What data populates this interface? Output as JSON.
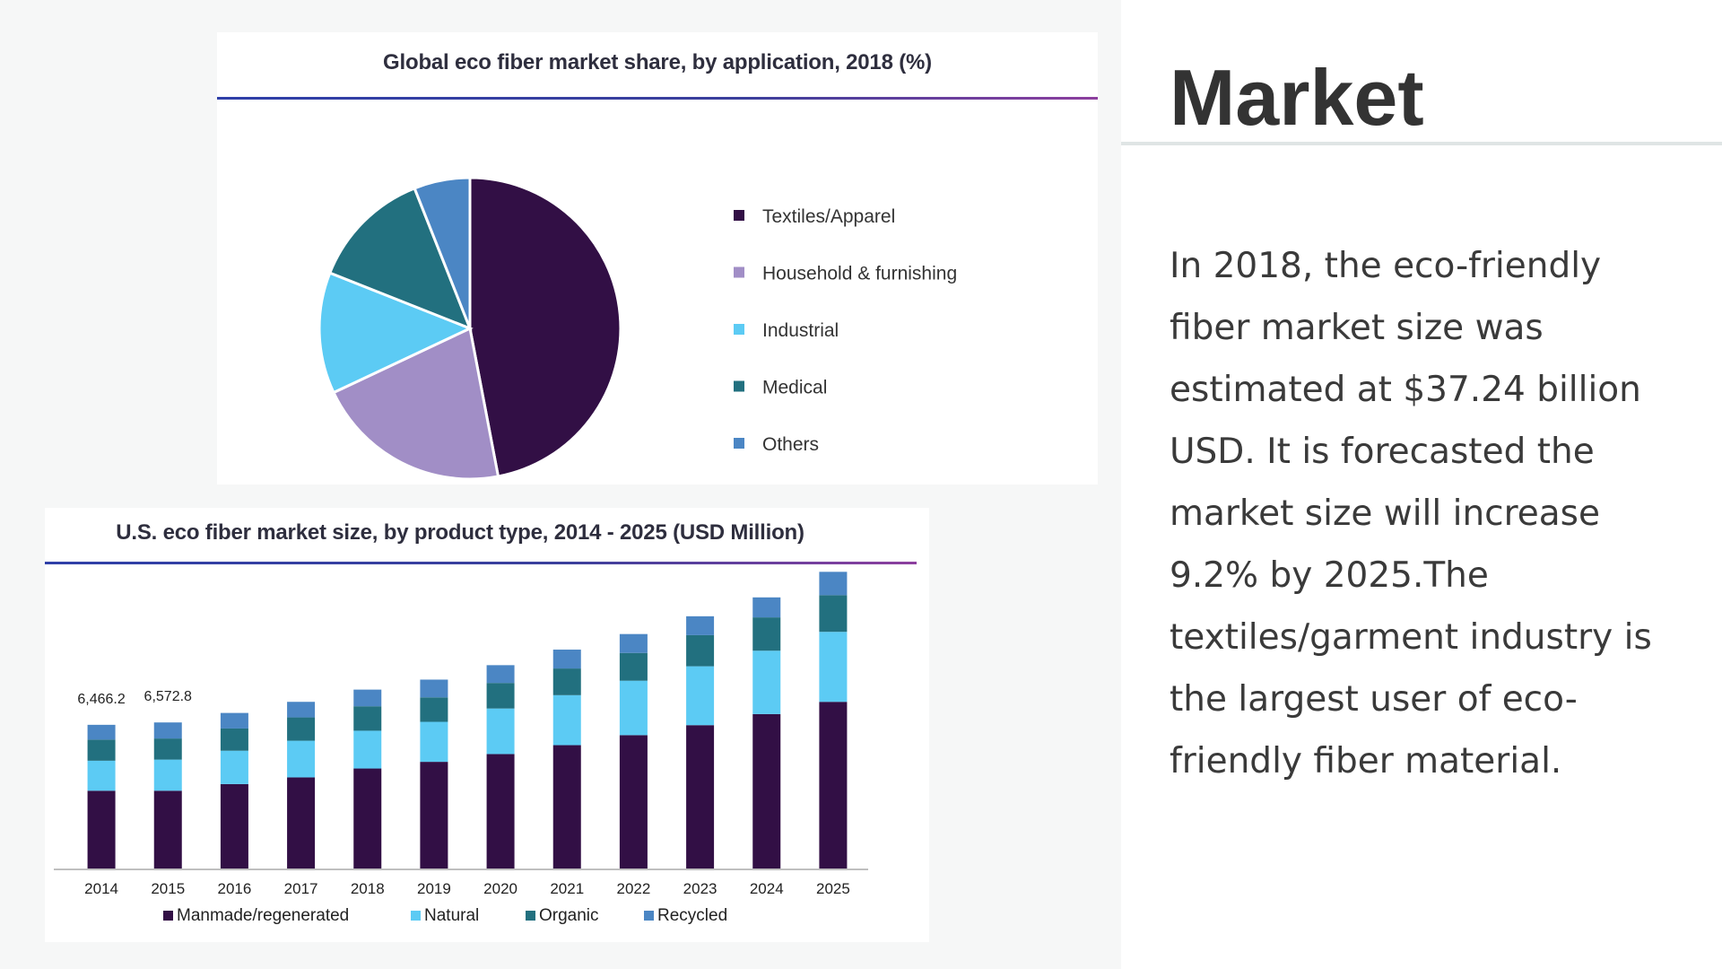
{
  "slide": {
    "title": "Market",
    "body": "In 2018, the eco-friendly fiber market size was estimated at $37.24 billion USD. It is forecasted the market size will increase 9.2% by 2025.The textiles/garment industry is the largest user of eco-friendly fiber material."
  },
  "chart_data": [
    {
      "type": "pie",
      "title": "Global eco fiber market share, by application, 2018 (%)",
      "categories": [
        "Textiles/Apparel",
        "Household & furnishing",
        "Industrial",
        "Medical",
        "Others"
      ],
      "values": [
        47,
        21,
        13,
        13,
        6
      ],
      "colors": [
        "#320f45",
        "#a18ec6",
        "#5ccbf4",
        "#22707f",
        "#4b86c4"
      ],
      "legend": "right"
    },
    {
      "type": "bar",
      "stacked": true,
      "title": "U.S. eco fiber market size, by product type, 2014 - 2025 (USD Million)",
      "categories": [
        "2014",
        "2015",
        "2016",
        "2017",
        "2018",
        "2019",
        "2020",
        "2021",
        "2022",
        "2023",
        "2024",
        "2025"
      ],
      "series": [
        {
          "name": "Manmade/regenerated",
          "color": "#320f45",
          "values": [
            3500,
            3500,
            3800,
            4100,
            4500,
            4800,
            5150,
            5550,
            6000,
            6450,
            6950,
            7500
          ]
        },
        {
          "name": "Natural",
          "color": "#5ccbf4",
          "values": [
            1350,
            1400,
            1500,
            1650,
            1700,
            1800,
            2050,
            2250,
            2450,
            2650,
            2850,
            3150
          ]
        },
        {
          "name": "Organic",
          "color": "#22707f",
          "values": [
            950,
            950,
            1000,
            1050,
            1100,
            1100,
            1150,
            1200,
            1250,
            1400,
            1500,
            1650
          ]
        },
        {
          "name": "Recycled",
          "color": "#4b86c4",
          "values": [
            666.2,
            722.8,
            700,
            700,
            750,
            800,
            800,
            850,
            850,
            850,
            900,
            1050
          ]
        }
      ],
      "data_labels": {
        "2014": "6,466.2",
        "2015": "6,572.8"
      },
      "ylim": [
        0,
        13000
      ],
      "legend": "bottom"
    }
  ]
}
